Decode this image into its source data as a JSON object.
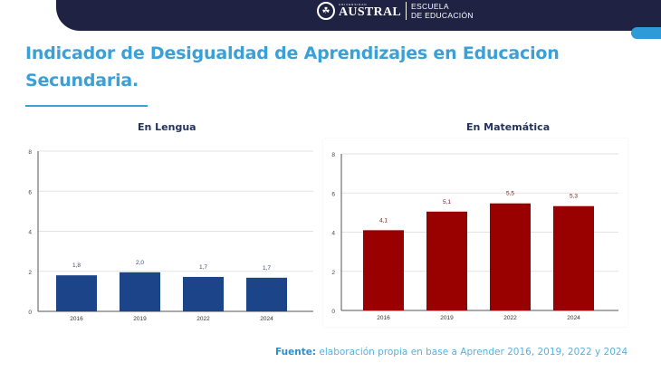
{
  "header": {
    "university_small": "UNIVERSIDAD",
    "university": "AUSTRAL",
    "school_line1": "ESCUELA",
    "school_line2": "DE EDUCACIÓN",
    "emblem_icon": "tree-emblem",
    "colors": {
      "bar": "#1f2242",
      "accent": "#2e9bd6"
    }
  },
  "title": "Indicador de Desigualdad de Aprendizajes en Educacion Secundaria.",
  "source": {
    "label": "Fuente:",
    "text": " elaboración propia en base a Aprender 2016, 2019, 2022 y 2024"
  },
  "chart_data": [
    {
      "type": "bar",
      "title": "En Lengua",
      "categories": [
        "2016",
        "2019",
        "2022",
        "2024"
      ],
      "values": [
        1.8,
        2.0,
        1.7,
        1.7
      ],
      "value_labels": [
        "1,8",
        "2,0",
        "1,7",
        "1,7"
      ],
      "plot_values": [
        1.8,
        1.95,
        1.72,
        1.68
      ],
      "xlabel": "",
      "ylabel": "",
      "ylim": [
        0,
        8
      ],
      "yticks": [
        "0",
        "2",
        "4",
        "6",
        "8"
      ],
      "grid": true,
      "color": "#1b4489"
    },
    {
      "type": "bar",
      "title": "En Matemática",
      "categories": [
        "2016",
        "2019",
        "2022",
        "2024"
      ],
      "values": [
        4.1,
        5.1,
        5.5,
        5.3
      ],
      "value_labels": [
        "4,1",
        "5,1",
        "5,5",
        "5,3"
      ],
      "plot_values": [
        4.1,
        5.05,
        5.47,
        5.33
      ],
      "xlabel": "",
      "ylabel": "",
      "ylim": [
        0,
        8
      ],
      "yticks": [
        "0",
        "2",
        "4",
        "6",
        "8"
      ],
      "grid": true,
      "color": "#990000"
    }
  ]
}
